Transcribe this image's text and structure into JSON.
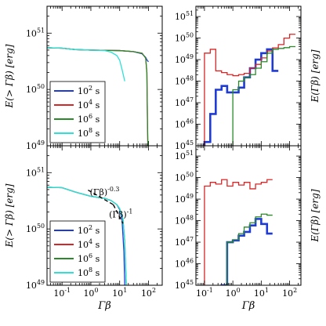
{
  "chart_data": [
    {
      "type": "line",
      "panel": "top-left",
      "xscale": "log",
      "yscale": "log",
      "xlim": [
        0.03,
        300
      ],
      "ylim": [
        1e+49,
        3e+51
      ],
      "xlabel": "",
      "ylabel": "E(> Γβ) [erg]",
      "xticklabels": [],
      "yticks": [
        1e+49,
        1e+50,
        1e+51
      ],
      "yticklabels": [
        "10^49",
        "10^50",
        "10^51"
      ],
      "legend_placement": "lower-left",
      "series": [
        {
          "name": "10^2 s",
          "color": "#1f3bd6",
          "x": [
            0.03,
            0.1,
            0.3,
            1,
            3,
            10,
            30,
            60,
            80,
            90,
            100
          ],
          "y": [
            5.5e+50,
            5.4e+50,
            5.1e+50,
            5e+50,
            4.95e+50,
            4.9e+50,
            4.7e+50,
            4.3e+50,
            3.7e+50,
            3.3e+50,
            3.1e+50
          ]
        },
        {
          "name": "10^4 s",
          "color": "#d62728",
          "x": [
            0.03,
            0.1,
            0.3,
            1,
            3,
            10,
            30,
            60,
            80,
            88,
            92,
            95
          ],
          "y": [
            5.5e+50,
            5.4e+50,
            5.1e+50,
            5e+50,
            4.95e+50,
            4.9e+50,
            4.7e+50,
            4.4e+50,
            3.6e+50,
            2e+50,
            3e+49,
            1e+49
          ]
        },
        {
          "name": "10^6 s",
          "color": "#2a8a2a",
          "x": [
            0.03,
            0.1,
            0.3,
            1,
            3,
            10,
            30,
            60,
            80,
            88,
            92,
            95
          ],
          "y": [
            5.5e+50,
            5.4e+50,
            5.1e+50,
            5e+50,
            4.95e+50,
            4.9e+50,
            4.7e+50,
            4.4e+50,
            3.6e+50,
            2e+50,
            3e+49,
            1e+49
          ]
        },
        {
          "name": "10^8 s",
          "color": "#2fe0d8",
          "x": [
            0.03,
            0.1,
            0.3,
            1,
            3,
            5,
            8,
            10,
            12,
            15
          ],
          "y": [
            5.5e+50,
            5.4e+50,
            5.1e+50,
            5e+50,
            4.9e+50,
            4.6e+50,
            4e+50,
            3.3e+50,
            2.3e+50,
            1.4e+50
          ]
        }
      ]
    },
    {
      "type": "line",
      "panel": "top-right",
      "xscale": "log",
      "yscale": "log",
      "xlim": [
        0.05,
        250
      ],
      "ylim": [
        1e+45,
        3e+51
      ],
      "xlabel": "",
      "ylabel": "E(Γβ) [erg]",
      "xticklabels": [],
      "yticks": [
        1e+45,
        1e+46,
        1e+47,
        1e+48,
        1e+49,
        1e+50,
        1e+51
      ],
      "yticklabels": [
        "10^45",
        "10^46",
        "10^47",
        "10^48",
        "10^49",
        "10^50",
        "10^51"
      ],
      "series": [
        {
          "name": "10^2 s",
          "color": "#1f3bd6",
          "step": true,
          "edges": [
            0.1,
            0.16,
            0.25,
            0.4,
            0.63,
            1.0,
            1.6,
            2.5,
            4.0,
            6.3,
            10,
            16,
            25,
            40
          ],
          "values": [
            1.5e+45,
            3e+46,
            4e+47,
            6e+47,
            3e+47,
            3e+47,
            5e+47,
            1.5e+48,
            4e+48,
            1e+49,
            2e+49,
            3e+49,
            3e+48
          ]
        },
        {
          "name": "10^4 s",
          "color": "#d62728",
          "step": true,
          "edges": [
            0.1,
            0.16,
            0.25,
            0.4,
            0.63,
            1.0,
            1.6,
            2.5,
            4.0,
            6.3,
            10,
            16,
            25,
            40,
            63,
            100,
            160
          ],
          "values": [
            2e+49,
            3e+49,
            3e+48,
            2.5e+48,
            2e+48,
            1.8e+48,
            2e+48,
            2.3e+48,
            4e+48,
            6e+48,
            1.2e+49,
            2.5e+49,
            3.5e+49,
            5e+49,
            1e+50,
            1.5e+50
          ]
        },
        {
          "name": "10^6 s",
          "color": "#2a8a2a",
          "step": true,
          "edges": [
            1.0,
            1.6,
            2.5,
            4.0,
            6.3,
            10,
            16,
            25,
            40,
            63,
            100,
            160
          ],
          "values": [
            4e+47,
            1e+48,
            1.5e+48,
            2e+48,
            4e+48,
            8e+48,
            2e+49,
            3e+49,
            3.3e+49,
            3.6e+49,
            4e+49
          ]
        },
        {
          "name": "10^8 s",
          "color": "#2fe0d8",
          "step": true,
          "edges": [],
          "values": []
        }
      ]
    },
    {
      "type": "line",
      "panel": "bottom-left",
      "xscale": "log",
      "yscale": "log",
      "xlim": [
        0.03,
        300
      ],
      "ylim": [
        1e+49,
        3e+51
      ],
      "xlabel": "Γβ",
      "ylabel": "E(> Γβ) [erg]",
      "xticks": [
        0.1,
        1,
        10,
        100
      ],
      "xticklabels": [
        "10^-1",
        "10^0",
        "10^1",
        "10^2"
      ],
      "yticks": [
        1e+49,
        1e+50,
        1e+51
      ],
      "yticklabels": [
        "10^49",
        "10^50",
        "10^51"
      ],
      "legend_placement": "lower-left",
      "annotations": [
        {
          "text": "(Γβ)^-0.3",
          "x": 3,
          "y": 4e+50
        },
        {
          "text": "(Γβ)^-1",
          "x": 11,
          "y": 1.6e+50
        }
      ],
      "powerlaws": [
        {
          "label": "(Γβ)^-0.3",
          "style": "dashed",
          "x": [
            0.8,
            6
          ],
          "y": [
            4.9e+50,
            2.7e+50
          ]
        },
        {
          "label": "(Γβ)^-1",
          "style": "dashed",
          "x": [
            6,
            13
          ],
          "y": [
            2.7e+50,
            1.25e+50
          ]
        }
      ],
      "series": [
        {
          "name": "10^2 s",
          "color": "#1f3bd6",
          "x": [
            0.03,
            0.1,
            0.3,
            1,
            2,
            3,
            5,
            8,
            10,
            12,
            14,
            15
          ],
          "y": [
            5.5e+50,
            5.4e+50,
            4.5e+50,
            3.8e+50,
            3.6e+50,
            3.5e+50,
            3.2e+50,
            2.7e+50,
            2.2e+50,
            1.5e+50,
            4e+49,
            1e+49
          ]
        },
        {
          "name": "10^4 s",
          "color": "#d62728",
          "x": [],
          "y": []
        },
        {
          "name": "10^6 s",
          "color": "#2a8a2a",
          "x": [
            0.03,
            0.1,
            0.3,
            1,
            2,
            3,
            5,
            8,
            10,
            13,
            15,
            17
          ],
          "y": [
            5.5e+50,
            5.4e+50,
            4.5e+50,
            3.8e+50,
            3.6e+50,
            3.5e+50,
            3.2e+50,
            2.7e+50,
            2.3e+50,
            1.5e+50,
            6e+49,
            1e+49
          ]
        },
        {
          "name": "10^8 s",
          "color": "#2fe0d8",
          "x": [
            0.03,
            0.1,
            0.3,
            1,
            2,
            3,
            5,
            8,
            10,
            13,
            15,
            17
          ],
          "y": [
            5.5e+50,
            5.4e+50,
            4.5e+50,
            3.8e+50,
            3.6e+50,
            3.5e+50,
            3.2e+50,
            2.7e+50,
            2.3e+50,
            1.5e+50,
            6e+49,
            1e+49
          ]
        }
      ]
    },
    {
      "type": "line",
      "panel": "bottom-right",
      "xscale": "log",
      "yscale": "log",
      "xlim": [
        0.05,
        250
      ],
      "ylim": [
        1e+45,
        3e+51
      ],
      "xlabel": "Γβ",
      "ylabel": "E(Γβ) [erg]",
      "xticks": [
        0.1,
        1,
        10,
        100
      ],
      "xticklabels": [
        "10^-1",
        "10^0",
        "10^1",
        "10^2"
      ],
      "yticks": [
        1e+45,
        1e+46,
        1e+47,
        1e+48,
        1e+49,
        1e+50,
        1e+51
      ],
      "yticklabels": [
        "10^45",
        "10^46",
        "10^47",
        "10^48",
        "10^49",
        "10^50",
        "10^51"
      ],
      "series": [
        {
          "name": "10^2 s",
          "color": "#1f3bd6",
          "step": true,
          "edges": [
            0.4,
            0.63,
            1.0,
            1.6,
            2.5,
            4.0,
            6.3,
            10,
            16,
            25
          ],
          "values": [
            1e+45,
            1e+47,
            1.2e+47,
            2e+47,
            3e+47,
            6e+47,
            1.2e+48,
            7e+47,
            2.5e+47
          ]
        },
        {
          "name": "10^4 s",
          "color": "#d62728",
          "step": true,
          "edges": [
            0.1,
            0.16,
            0.25,
            0.4,
            0.63,
            1.0,
            1.6,
            2.5,
            4.0,
            6.3,
            10,
            16,
            25
          ],
          "values": [
            4e+49,
            6e+49,
            5e+49,
            8e+49,
            4e+49,
            6e+49,
            4.5e+49,
            6e+49,
            3e+49,
            5e+49,
            6e+49,
            8e+49
          ]
        },
        {
          "name": "10^6 s",
          "color": "#2a8a2a",
          "step": true,
          "edges": [
            0.63,
            1.0,
            1.6,
            2.5,
            4.0,
            6.3,
            10,
            16,
            25
          ],
          "values": [
            1e+47,
            1.3e+47,
            2.5e+47,
            5e+47,
            8e+47,
            1.5e+48,
            2e+48,
            1.8e+48
          ]
        },
        {
          "name": "10^8 s",
          "color": "#2fe0d8",
          "step": true,
          "edges": [],
          "values": []
        }
      ]
    }
  ]
}
